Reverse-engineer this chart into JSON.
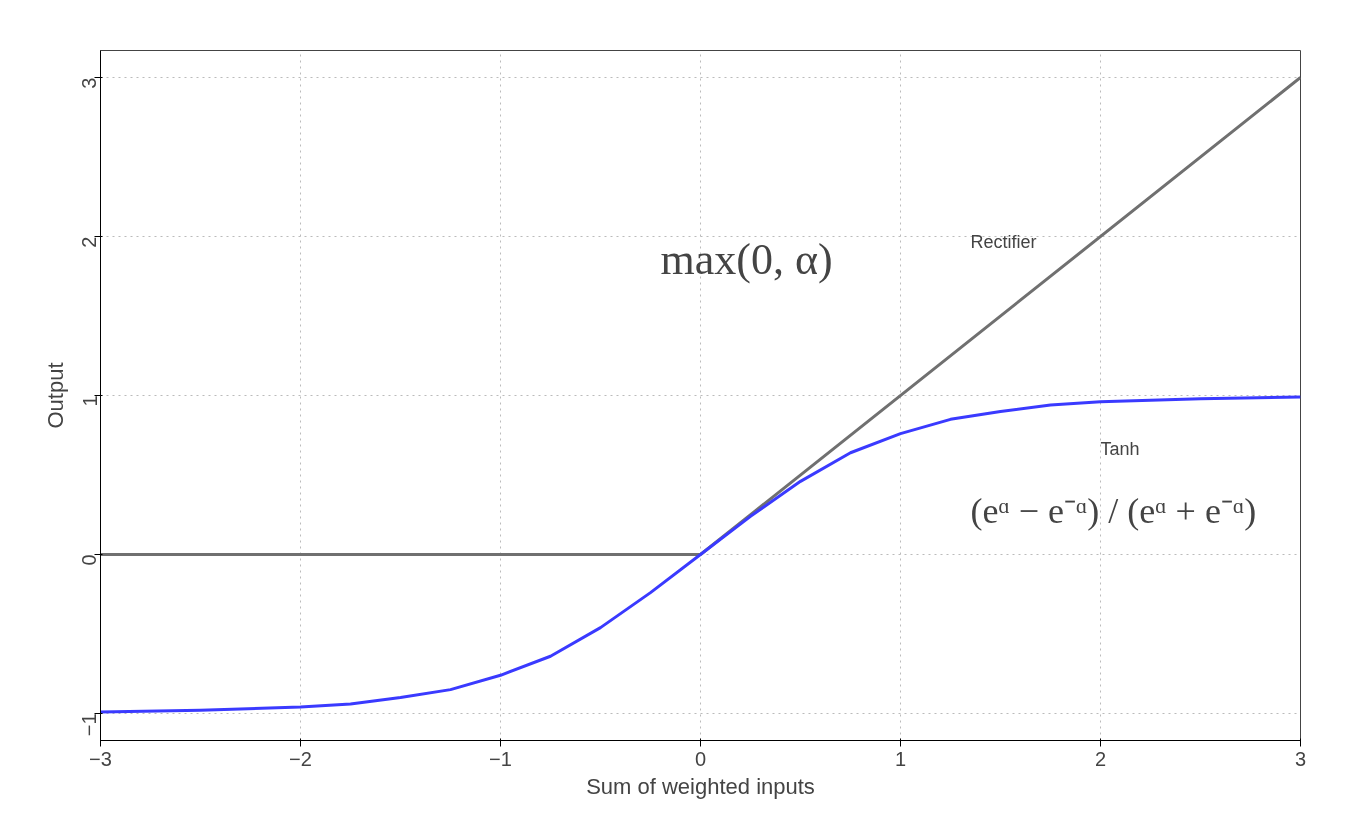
{
  "chart_data": {
    "type": "line",
    "xlabel": "Sum of weighted inputs",
    "ylabel": "Output",
    "xlim": [
      -3,
      3
    ],
    "ylim": [
      -1.17,
      3.17
    ],
    "xticks": [
      -3,
      -2,
      -1,
      0,
      1,
      2,
      3
    ],
    "yticks": [
      -1,
      0,
      1,
      2,
      3
    ],
    "grid": true,
    "legend": false,
    "marker": "none",
    "line_style": "solid",
    "annotations": [
      "max(0, α)",
      "(eᵅ − e⁻ᵅ) / (eᵅ + e⁻ᵅ)"
    ],
    "series": [
      {
        "name": "Rectifier",
        "color": "#707070",
        "x": [
          -3,
          0,
          3
        ],
        "values": [
          0,
          0,
          3
        ]
      },
      {
        "name": "Tanh",
        "color": "#3a3aff",
        "x": [
          -3,
          -2.5,
          -2,
          -1.75,
          -1.5,
          -1.25,
          -1,
          -0.75,
          -0.5,
          -0.25,
          0,
          0.25,
          0.5,
          0.75,
          1,
          1.25,
          1.5,
          1.75,
          2,
          2.5,
          3
        ],
        "values": [
          -0.99,
          -0.98,
          -0.96,
          -0.94,
          -0.9,
          -0.85,
          -0.76,
          -0.64,
          -0.46,
          -0.24,
          0,
          0.24,
          0.46,
          0.64,
          0.76,
          0.85,
          0.9,
          0.94,
          0.96,
          0.98,
          0.99
        ]
      }
    ]
  }
}
